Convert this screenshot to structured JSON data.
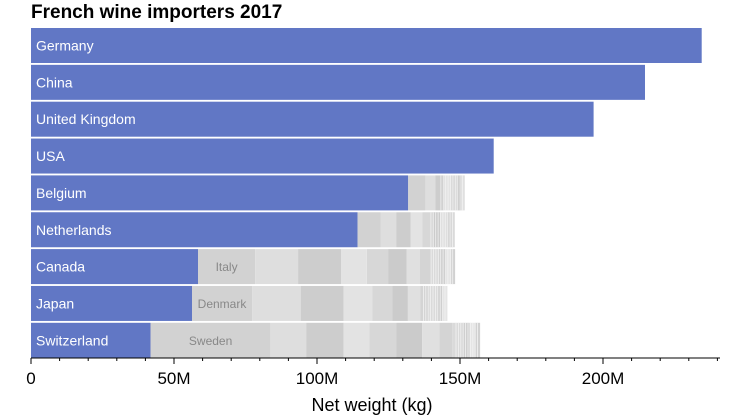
{
  "chart_data": {
    "type": "bar",
    "orientation": "horizontal",
    "stacked": true,
    "title": "French wine importers 2017",
    "xlabel": "Net weight (kg)",
    "ylabel": "",
    "xlim": [
      0,
      240000000
    ],
    "x_ticks": [
      0,
      50000000,
      100000000,
      150000000,
      200000000
    ],
    "x_tick_labels": [
      "0",
      "50M",
      "100M",
      "150M",
      "200M"
    ],
    "grid": false,
    "categories": [
      "Germany",
      "China",
      "United Kingdom",
      "USA",
      "Belgium",
      "Netherlands",
      "Canada",
      "Japan",
      "Switzerland"
    ],
    "series": [
      {
        "values": [
          234500000,
          214700000,
          196700000,
          161800000,
          131900000,
          114200000,
          58400000,
          56300000,
          41800000
        ]
      }
    ],
    "rest_of_market_segments": {
      "Belgium": [
        6000000,
        3500000,
        3000000,
        2500000,
        2000000,
        1500000,
        1300000
      ],
      "Netherlands": [
        8000000,
        5500000,
        5000000,
        4200000,
        3400000,
        2800000,
        2200000,
        1700000,
        1200000
      ],
      "Canada": [
        20000000,
        15000000,
        15000000,
        9000000,
        7500000,
        6500000,
        4500000,
        3800000,
        3000000,
        2400000,
        1800000,
        1400000
      ],
      "Japan": [
        21000000,
        17000000,
        15000000,
        10000000,
        7000000,
        5500000,
        4300000,
        3300000,
        2600000,
        2000000,
        1600000
      ],
      "Switzerland": [
        42000000,
        12500000,
        13000000,
        9000000,
        9500000,
        9000000,
        6000000,
        4500000,
        3500000,
        2500000,
        2000000,
        1700000
      ]
    },
    "inner_labels": [
      {
        "category": "Canada",
        "segment": 0,
        "text": "Italy"
      },
      {
        "category": "Japan",
        "segment": 0,
        "text": "Denmark"
      },
      {
        "category": "Switzerland",
        "segment": 0,
        "text": "Sweden"
      }
    ],
    "colors": {
      "highlight": "#6177c5",
      "rest_palette": [
        "#d2d2d2",
        "#dedede",
        "#cdcdcd",
        "#e3e3e3",
        "#d7d7d7",
        "#cbcbcb",
        "#e0e0e0",
        "#d4d4d4",
        "#dadada",
        "#cfcfcf",
        "#e5e5e5",
        "#d1d1d1"
      ]
    }
  }
}
